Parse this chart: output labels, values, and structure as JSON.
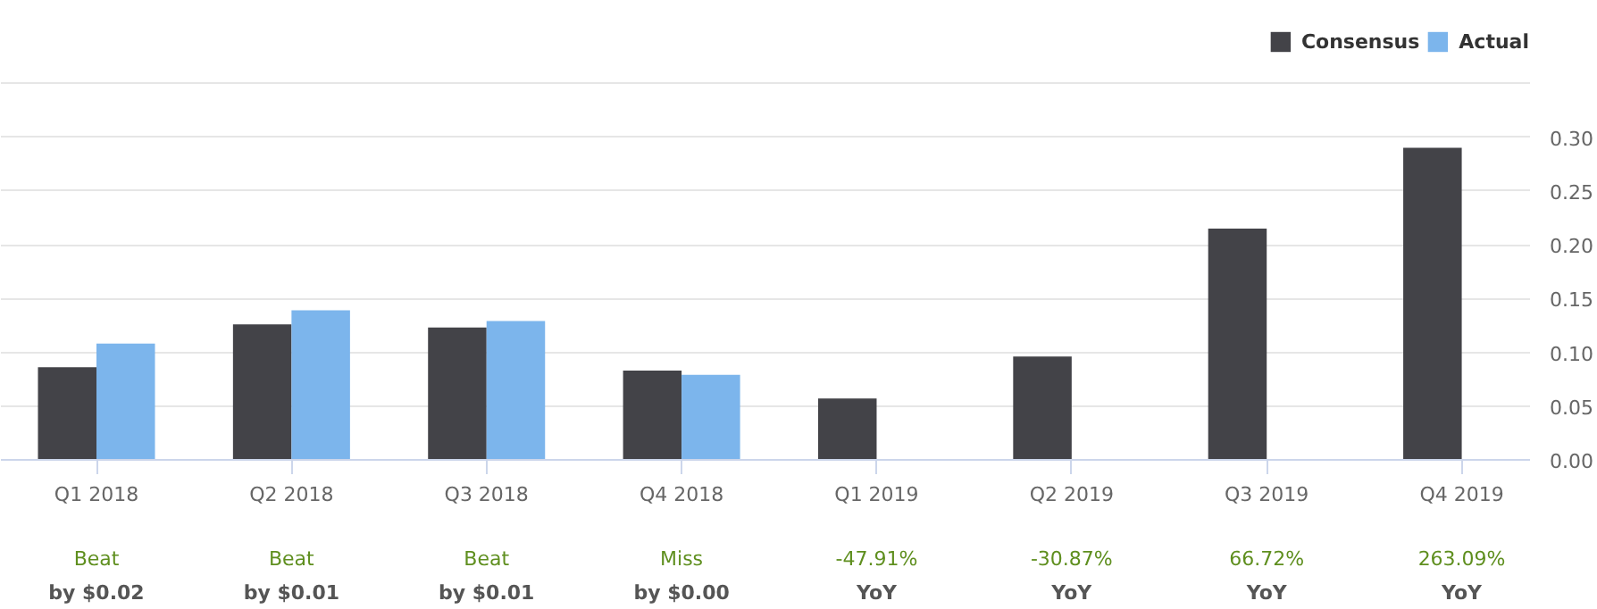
{
  "chart_data": {
    "type": "bar",
    "categories": [
      "Q1 2018",
      "Q2 2018",
      "Q3 2018",
      "Q4 2018",
      "Q1 2019",
      "Q2 2019",
      "Q3 2019",
      "Q4 2019"
    ],
    "series": [
      {
        "name": "Consensus",
        "color": "#434348",
        "values": [
          0.086,
          0.126,
          0.123,
          0.083,
          0.057,
          0.096,
          0.215,
          0.29
        ]
      },
      {
        "name": "Actual",
        "color": "#7cb5ec",
        "values": [
          0.108,
          0.139,
          0.129,
          0.079,
          null,
          null,
          null,
          null
        ]
      }
    ],
    "ylim": [
      0,
      0.4
    ],
    "yticks": [
      {
        "value": 0,
        "label": "0.00"
      },
      {
        "value": 0.05,
        "label": "0.05"
      },
      {
        "value": 0.1,
        "label": "0.10"
      },
      {
        "value": 0.15,
        "label": "0.15"
      },
      {
        "value": 0.2,
        "label": "0.20"
      },
      {
        "value": 0.25,
        "label": "0.25"
      },
      {
        "value": 0.3,
        "label": "0.30"
      },
      {
        "value": 0.35,
        "label": null
      }
    ],
    "grid": "y",
    "legend": "top right",
    "annotations": [
      "Beat",
      "by $0.02",
      "Beat",
      "by $0.01",
      "Beat",
      "by $0.01",
      "Miss",
      "by $0.00",
      "-47.91%",
      "YoY",
      "-30.87%",
      "YoY",
      "66.72%",
      "YoY",
      "263.09%",
      "YoY"
    ]
  }
}
